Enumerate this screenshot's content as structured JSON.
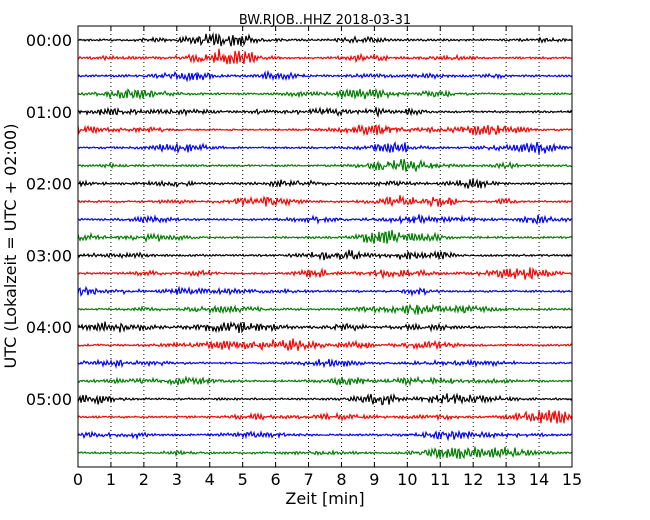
{
  "chart_data": {
    "type": "line",
    "title": "BW.RJOB..HHZ 2018-03-31",
    "xlabel": "Zeit  [min]",
    "ylabel": "UTC (Lokalzeit = UTC + 02:00)",
    "xlim": [
      0,
      15
    ],
    "xticks": [
      "0",
      "1",
      "2",
      "3",
      "4",
      "5",
      "6",
      "7",
      "8",
      "9",
      "10",
      "11",
      "12",
      "13",
      "14",
      "15"
    ],
    "ytick_labels": [
      "00:00",
      "01:00",
      "02:00",
      "03:00",
      "04:00",
      "05:00"
    ],
    "grid": "vertical dotted lines at each minute",
    "trace_interval_minutes": 15,
    "trace_count": 24,
    "trace_colors": [
      "#000000",
      "#ff0000",
      "#0000ff",
      "#007f00"
    ],
    "series": [
      {
        "start_utc": "00:00",
        "color": "#000000"
      },
      {
        "start_utc": "00:15",
        "color": "#ff0000"
      },
      {
        "start_utc": "00:30",
        "color": "#0000ff"
      },
      {
        "start_utc": "00:45",
        "color": "#007f00"
      },
      {
        "start_utc": "01:00",
        "color": "#000000"
      },
      {
        "start_utc": "01:15",
        "color": "#ff0000"
      },
      {
        "start_utc": "01:30",
        "color": "#0000ff"
      },
      {
        "start_utc": "01:45",
        "color": "#007f00"
      },
      {
        "start_utc": "02:00",
        "color": "#000000"
      },
      {
        "start_utc": "02:15",
        "color": "#ff0000"
      },
      {
        "start_utc": "02:30",
        "color": "#0000ff"
      },
      {
        "start_utc": "02:45",
        "color": "#007f00"
      },
      {
        "start_utc": "03:00",
        "color": "#000000"
      },
      {
        "start_utc": "03:15",
        "color": "#ff0000"
      },
      {
        "start_utc": "03:30",
        "color": "#0000ff"
      },
      {
        "start_utc": "03:45",
        "color": "#007f00"
      },
      {
        "start_utc": "04:00",
        "color": "#000000"
      },
      {
        "start_utc": "04:15",
        "color": "#ff0000"
      },
      {
        "start_utc": "04:30",
        "color": "#0000ff"
      },
      {
        "start_utc": "04:45",
        "color": "#007f00"
      },
      {
        "start_utc": "05:00",
        "color": "#000000"
      },
      {
        "start_utc": "05:15",
        "color": "#ff0000"
      },
      {
        "start_utc": "05:30",
        "color": "#0000ff"
      },
      {
        "start_utc": "05:45",
        "color": "#007f00"
      }
    ]
  }
}
